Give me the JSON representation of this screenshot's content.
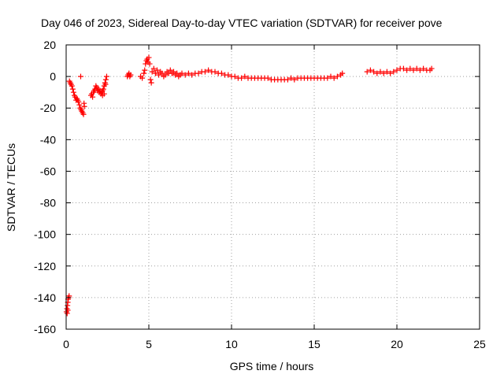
{
  "chart_data": {
    "type": "scatter",
    "title": "Day 046 of 2023, Sidereal Day-to-day VTEC variation (SDTVAR) for receiver pove",
    "xlabel": "GPS time / hours",
    "ylabel": "SDTVAR / TECUs",
    "xlim": [
      0,
      25
    ],
    "ylim": [
      -160,
      20
    ],
    "xticks": [
      0,
      5,
      10,
      15,
      20,
      25
    ],
    "yticks": [
      20,
      0,
      -20,
      -40,
      -60,
      -80,
      -100,
      -120,
      -140,
      -160
    ],
    "grid": true,
    "marker": "plus",
    "color": "#ff0000",
    "series": [
      {
        "name": "",
        "points": [
          [
            0.02,
            -149
          ],
          [
            0.05,
            -147
          ],
          [
            0.08,
            -145
          ],
          [
            0.1,
            -143
          ],
          [
            0.12,
            -141
          ],
          [
            0.15,
            -140
          ],
          [
            0.18,
            -139
          ],
          [
            0.06,
            -150
          ],
          [
            0.1,
            -148
          ],
          [
            0.2,
            -3
          ],
          [
            0.25,
            -4
          ],
          [
            0.3,
            -5
          ],
          [
            0.35,
            -6
          ],
          [
            0.4,
            -8
          ],
          [
            0.45,
            -10
          ],
          [
            0.5,
            -12
          ],
          [
            0.55,
            -13
          ],
          [
            0.6,
            -15
          ],
          [
            0.65,
            -14
          ],
          [
            0.7,
            -15
          ],
          [
            0.75,
            -16
          ],
          [
            0.8,
            -18
          ],
          [
            0.85,
            -20
          ],
          [
            0.9,
            -21
          ],
          [
            0.95,
            -22
          ],
          [
            1.0,
            -23
          ],
          [
            1.05,
            -24
          ],
          [
            1.1,
            -19
          ],
          [
            0.88,
            0
          ],
          [
            1.08,
            -17
          ],
          [
            1.5,
            -12
          ],
          [
            1.55,
            -11
          ],
          [
            1.6,
            -13
          ],
          [
            1.65,
            -10
          ],
          [
            1.7,
            -9
          ],
          [
            1.75,
            -8
          ],
          [
            1.8,
            -6
          ],
          [
            1.85,
            -7
          ],
          [
            1.9,
            -9
          ],
          [
            1.95,
            -8
          ],
          [
            2.0,
            -10
          ],
          [
            2.05,
            -9
          ],
          [
            2.1,
            -11
          ],
          [
            2.15,
            -10
          ],
          [
            2.2,
            -9
          ],
          [
            2.25,
            -8
          ],
          [
            2.3,
            -6
          ],
          [
            2.35,
            -4
          ],
          [
            2.4,
            -2
          ],
          [
            2.45,
            0
          ],
          [
            2.2,
            -12
          ],
          [
            2.3,
            -11
          ],
          [
            2.38,
            -5
          ],
          [
            3.7,
            0
          ],
          [
            3.75,
            1
          ],
          [
            3.8,
            2
          ],
          [
            3.85,
            0
          ],
          [
            3.9,
            1
          ],
          [
            4.5,
            0
          ],
          [
            4.6,
            -1
          ],
          [
            4.7,
            2
          ],
          [
            4.75,
            4
          ],
          [
            4.8,
            8
          ],
          [
            4.85,
            10
          ],
          [
            4.9,
            11
          ],
          [
            4.95,
            9
          ],
          [
            5.0,
            12
          ],
          [
            5.05,
            8
          ],
          [
            5.1,
            -2
          ],
          [
            5.15,
            -4
          ],
          [
            5.2,
            3
          ],
          [
            5.3,
            5
          ],
          [
            5.4,
            2
          ],
          [
            5.5,
            4
          ],
          [
            5.6,
            1
          ],
          [
            5.7,
            3
          ],
          [
            5.8,
            2
          ],
          [
            5.9,
            0
          ],
          [
            6.0,
            1
          ],
          [
            6.1,
            3
          ],
          [
            6.2,
            2
          ],
          [
            6.3,
            4
          ],
          [
            6.4,
            2
          ],
          [
            6.5,
            3
          ],
          [
            6.6,
            1
          ],
          [
            6.7,
            2
          ],
          [
            6.8,
            0
          ],
          [
            6.9,
            1
          ],
          [
            7.0,
            2
          ],
          [
            7.2,
            1
          ],
          [
            7.4,
            2
          ],
          [
            7.6,
            1
          ],
          [
            7.8,
            2
          ],
          [
            8.0,
            2
          ],
          [
            8.2,
            3
          ],
          [
            8.4,
            3
          ],
          [
            8.6,
            4
          ],
          [
            8.8,
            3
          ],
          [
            9.0,
            3
          ],
          [
            9.2,
            2
          ],
          [
            9.4,
            2
          ],
          [
            9.6,
            1
          ],
          [
            9.8,
            1
          ],
          [
            10.0,
            0
          ],
          [
            10.2,
            0
          ],
          [
            10.4,
            -1
          ],
          [
            10.6,
            -1
          ],
          [
            10.8,
            0
          ],
          [
            11.0,
            -1
          ],
          [
            11.2,
            -1
          ],
          [
            11.4,
            -1
          ],
          [
            11.6,
            -1
          ],
          [
            11.8,
            -1
          ],
          [
            12.0,
            -1
          ],
          [
            12.2,
            -1
          ],
          [
            12.4,
            -2
          ],
          [
            12.6,
            -2
          ],
          [
            12.8,
            -2
          ],
          [
            13.0,
            -2
          ],
          [
            13.2,
            -2
          ],
          [
            13.4,
            -2
          ],
          [
            13.6,
            -1
          ],
          [
            13.8,
            -2
          ],
          [
            14.0,
            -1
          ],
          [
            14.2,
            -1
          ],
          [
            14.4,
            -1
          ],
          [
            14.6,
            -1
          ],
          [
            14.8,
            -1
          ],
          [
            15.0,
            -1
          ],
          [
            15.2,
            -1
          ],
          [
            15.4,
            -1
          ],
          [
            15.6,
            -1
          ],
          [
            15.8,
            -1
          ],
          [
            16.0,
            0
          ],
          [
            16.2,
            -1
          ],
          [
            16.4,
            0
          ],
          [
            16.6,
            1
          ],
          [
            16.7,
            2
          ],
          [
            18.2,
            3
          ],
          [
            18.4,
            4
          ],
          [
            18.6,
            3
          ],
          [
            18.8,
            2
          ],
          [
            19.0,
            3
          ],
          [
            19.2,
            2
          ],
          [
            19.4,
            3
          ],
          [
            19.6,
            2
          ],
          [
            19.8,
            3
          ],
          [
            20.0,
            4
          ],
          [
            20.2,
            5
          ],
          [
            20.4,
            5
          ],
          [
            20.6,
            4
          ],
          [
            20.8,
            5
          ],
          [
            21.0,
            4
          ],
          [
            21.2,
            5
          ],
          [
            21.4,
            4
          ],
          [
            21.6,
            5
          ],
          [
            21.8,
            4
          ],
          [
            22.0,
            4
          ],
          [
            22.1,
            5
          ]
        ]
      }
    ]
  }
}
